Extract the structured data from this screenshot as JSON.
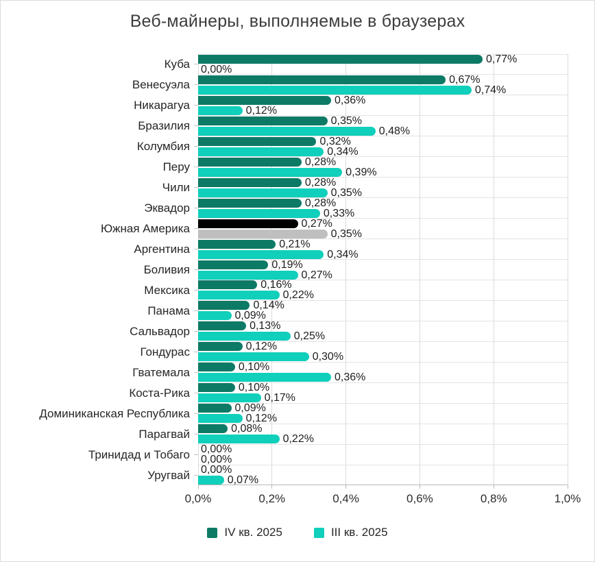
{
  "colors": {
    "q4": "#0D7A66",
    "q3": "#10CFBB",
    "highlight_q4": "#000000",
    "highlight_q3": "#BFBFBF",
    "grid_vertical": "#DBDBDB",
    "grid_horizontal": "#E3E3E3",
    "axis_line": "#B9B9B9",
    "tick_mark": "#C4C4C4",
    "value_text": "#1C1C1C",
    "category_text": "#262626",
    "title_text": "#3D3D3D"
  },
  "x_axis": {
    "min": 0,
    "max": 1.0,
    "ticks": [
      {
        "value": 0.0,
        "label": "0,0%"
      },
      {
        "value": 0.2,
        "label": "0,2%"
      },
      {
        "value": 0.4,
        "label": "0,4%"
      },
      {
        "value": 0.6,
        "label": "0,6%"
      },
      {
        "value": 0.8,
        "label": "0,8%"
      },
      {
        "value": 1.0,
        "label": "1,0%"
      }
    ]
  },
  "legend": {
    "items": [
      {
        "label": "IV кв. 2025",
        "color_key": "q4"
      },
      {
        "label": "III кв. 2025",
        "color_key": "q3"
      }
    ],
    "position": "bottom"
  },
  "chart_data": {
    "type": "bar",
    "orientation": "horizontal",
    "title": "Веб-майнеры, выполняемые в браузерах",
    "xlabel": "",
    "ylabel": "",
    "xlim": [
      0,
      1.0
    ],
    "grid": true,
    "legend_position": "bottom",
    "value_label_format": "percent, comma decimal, 2 dp",
    "highlight_category": "Южная Америка",
    "categories": [
      "Куба",
      "Венесуэла",
      "Никарагуа",
      "Бразилия",
      "Колумбия",
      "Перу",
      "Чили",
      "Эквадор",
      "Южная Америка",
      "Аргентина",
      "Боливия",
      "Мексика",
      "Панама",
      "Сальвадор",
      "Гондурас",
      "Гватемала",
      "Коста-Рика",
      "Доминиканская Республика",
      "Парагвай",
      "Тринидад и Тобаго",
      "Уругвай"
    ],
    "series": [
      {
        "name": "IV кв. 2025",
        "values": [
          0.77,
          0.67,
          0.36,
          0.35,
          0.32,
          0.28,
          0.28,
          0.28,
          0.27,
          0.21,
          0.19,
          0.16,
          0.14,
          0.13,
          0.12,
          0.1,
          0.1,
          0.09,
          0.08,
          0.0,
          0.0
        ]
      },
      {
        "name": "III кв. 2025",
        "values": [
          0.0,
          0.74,
          0.12,
          0.48,
          0.34,
          0.39,
          0.35,
          0.33,
          0.35,
          0.34,
          0.27,
          0.22,
          0.09,
          0.25,
          0.3,
          0.36,
          0.17,
          0.12,
          0.22,
          0.0,
          0.07
        ]
      }
    ]
  }
}
